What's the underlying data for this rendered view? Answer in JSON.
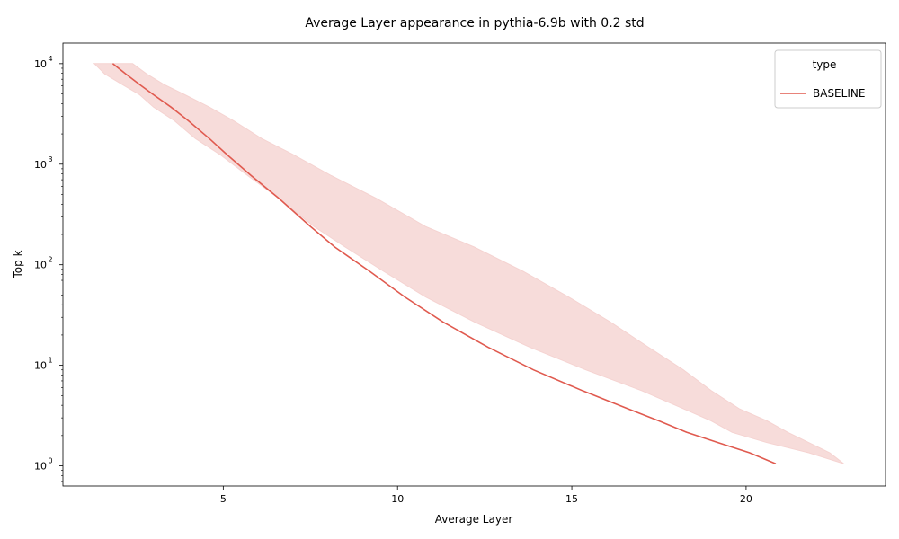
{
  "chart_data": {
    "type": "line",
    "title": "Average Layer appearance in pythia-6.9b with 0.2 std",
    "xlabel": "Average Layer",
    "ylabel": "Top k",
    "xlim": [
      0.4,
      24.0
    ],
    "ylim": [
      0.63,
      16000
    ],
    "yscale": "log",
    "xticks": [
      5,
      10,
      15,
      20
    ],
    "xtick_labels": [
      "5",
      "10",
      "15",
      "20"
    ],
    "yticks": [
      1,
      10,
      100,
      1000,
      10000
    ],
    "ytick_labels": [
      "10",
      "10",
      "10",
      "10",
      "10"
    ],
    "ytick_exponents": [
      "0",
      "1",
      "2",
      "3",
      "4"
    ],
    "grid": false,
    "legend": {
      "title": "type",
      "position": "top-right"
    },
    "series": [
      {
        "name": "BASELINE",
        "color": "#e05a4f",
        "band_color": "#f5d3d1",
        "x": [
          1.83,
          2.2,
          2.6,
          3.0,
          3.5,
          4.0,
          4.6,
          5.1,
          5.8,
          6.6,
          7.5,
          8.2,
          9.2,
          10.2,
          11.3,
          12.6,
          13.9,
          15.3,
          16.6,
          17.5,
          18.3,
          19.2,
          20.1,
          20.85
        ],
        "y": [
          10000,
          7900,
          6200,
          4900,
          3700,
          2700,
          1800,
          1250,
          770,
          455,
          240,
          150,
          86,
          48,
          27,
          15.1,
          9.0,
          5.6,
          3.7,
          2.8,
          2.15,
          1.7,
          1.35,
          1.05
        ],
        "x_low": [
          1.3,
          1.6,
          2.1,
          2.6,
          3.0,
          3.6,
          4.2,
          4.9,
          5.7,
          6.6,
          7.6,
          8.5,
          9.6,
          10.8,
          12.2,
          13.8,
          15.4,
          17.0,
          18.2,
          19.0,
          19.6,
          20.6,
          21.8,
          22.8
        ],
        "x_high": [
          2.4,
          2.8,
          3.3,
          3.9,
          4.6,
          5.3,
          6.1,
          7.0,
          8.1,
          9.4,
          10.8,
          12.2,
          13.6,
          14.9,
          16.1,
          17.2,
          18.2,
          19.0,
          19.8,
          20.6,
          21.2,
          21.8,
          22.4,
          22.8
        ]
      }
    ]
  }
}
